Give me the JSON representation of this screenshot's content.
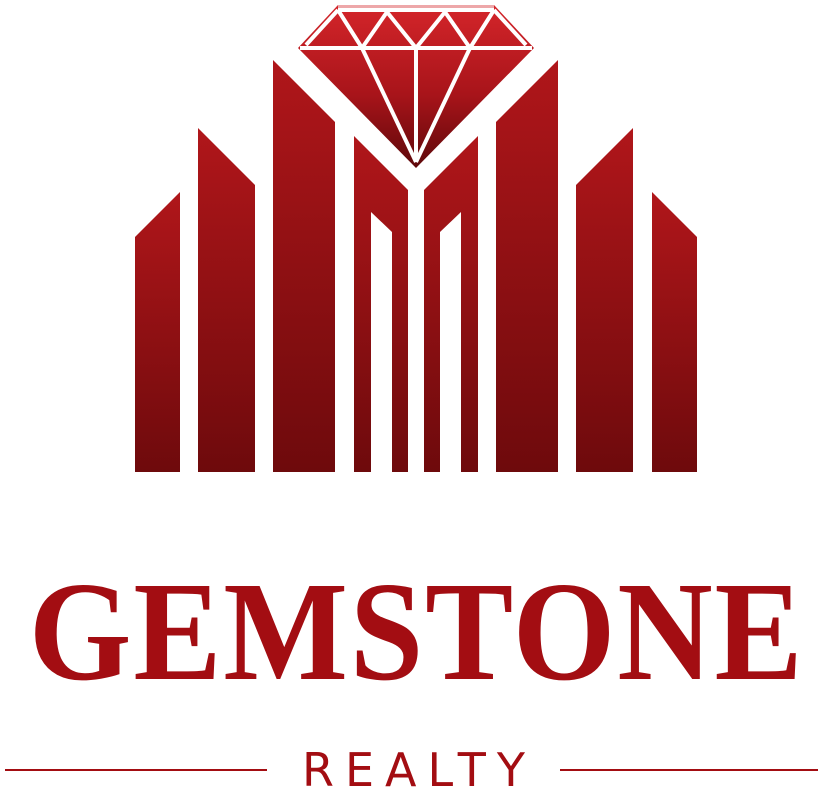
{
  "brand": {
    "name": "GEMSTONE",
    "tagline": "REALTY"
  },
  "colors": {
    "primary": "#a30d12",
    "gradient_top": "#b0161a",
    "gradient_bottom": "#6e0a0c",
    "background": "#ffffff"
  },
  "icons": {
    "emblem": "diamond-over-buildings-icon"
  }
}
